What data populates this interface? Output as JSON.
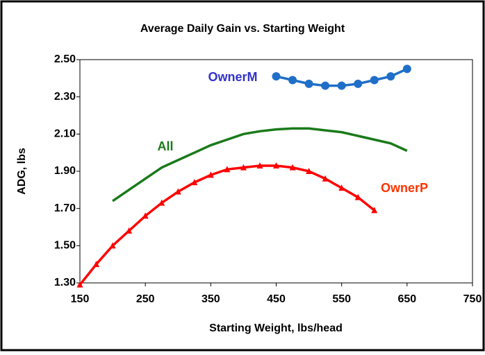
{
  "chart_data": {
    "type": "line",
    "title": "Average Daily Gain vs. Starting Weight",
    "x_label": "Starting Weight, lbs/head",
    "y_label": "ADG, lbs",
    "xlim": [
      150,
      750
    ],
    "xticks": [
      150,
      250,
      350,
      450,
      550,
      650,
      750
    ],
    "ylim": [
      1.3,
      2.5
    ],
    "yticks": [
      {
        "value": 1.3,
        "label": "1.30"
      },
      {
        "value": 1.5,
        "label": "1.50"
      },
      {
        "value": 1.7,
        "label": "1.70"
      },
      {
        "value": 1.9,
        "label": "1.90"
      },
      {
        "value": 2.1,
        "label": "2.10"
      },
      {
        "value": 2.3,
        "label": "2.30"
      },
      {
        "value": 2.5,
        "label": "2.50"
      }
    ],
    "grid": false,
    "series": [
      {
        "name": "OwnerM",
        "color": "#1f6fc8",
        "label_color": "#3333cc",
        "marker": "circle",
        "x": [
          450,
          475,
          500,
          525,
          550,
          575,
          600,
          625,
          650
        ],
        "values": [
          2.41,
          2.39,
          2.37,
          2.36,
          2.36,
          2.37,
          2.39,
          2.41,
          2.45
        ]
      },
      {
        "name": "All",
        "color": "#1a7a1a",
        "label_color": "#1a7a1a",
        "marker": "none",
        "x": [
          200,
          225,
          250,
          275,
          300,
          325,
          350,
          375,
          400,
          425,
          450,
          475,
          500,
          525,
          550,
          575,
          600,
          625,
          650
        ],
        "values": [
          1.74,
          1.8,
          1.86,
          1.92,
          1.96,
          2.0,
          2.04,
          2.07,
          2.1,
          2.115,
          2.125,
          2.13,
          2.13,
          2.12,
          2.11,
          2.09,
          2.07,
          2.05,
          2.01
        ]
      },
      {
        "name": "OwnerP",
        "color": "#ff0000",
        "label_color": "#ff3300",
        "marker": "triangle",
        "x": [
          150,
          175,
          200,
          225,
          250,
          275,
          300,
          325,
          350,
          375,
          400,
          425,
          450,
          475,
          500,
          525,
          550,
          575,
          600
        ],
        "values": [
          1.29,
          1.4,
          1.5,
          1.58,
          1.66,
          1.73,
          1.79,
          1.84,
          1.88,
          1.91,
          1.92,
          1.93,
          1.93,
          1.92,
          1.9,
          1.86,
          1.81,
          1.76,
          1.69
        ]
      }
    ]
  }
}
